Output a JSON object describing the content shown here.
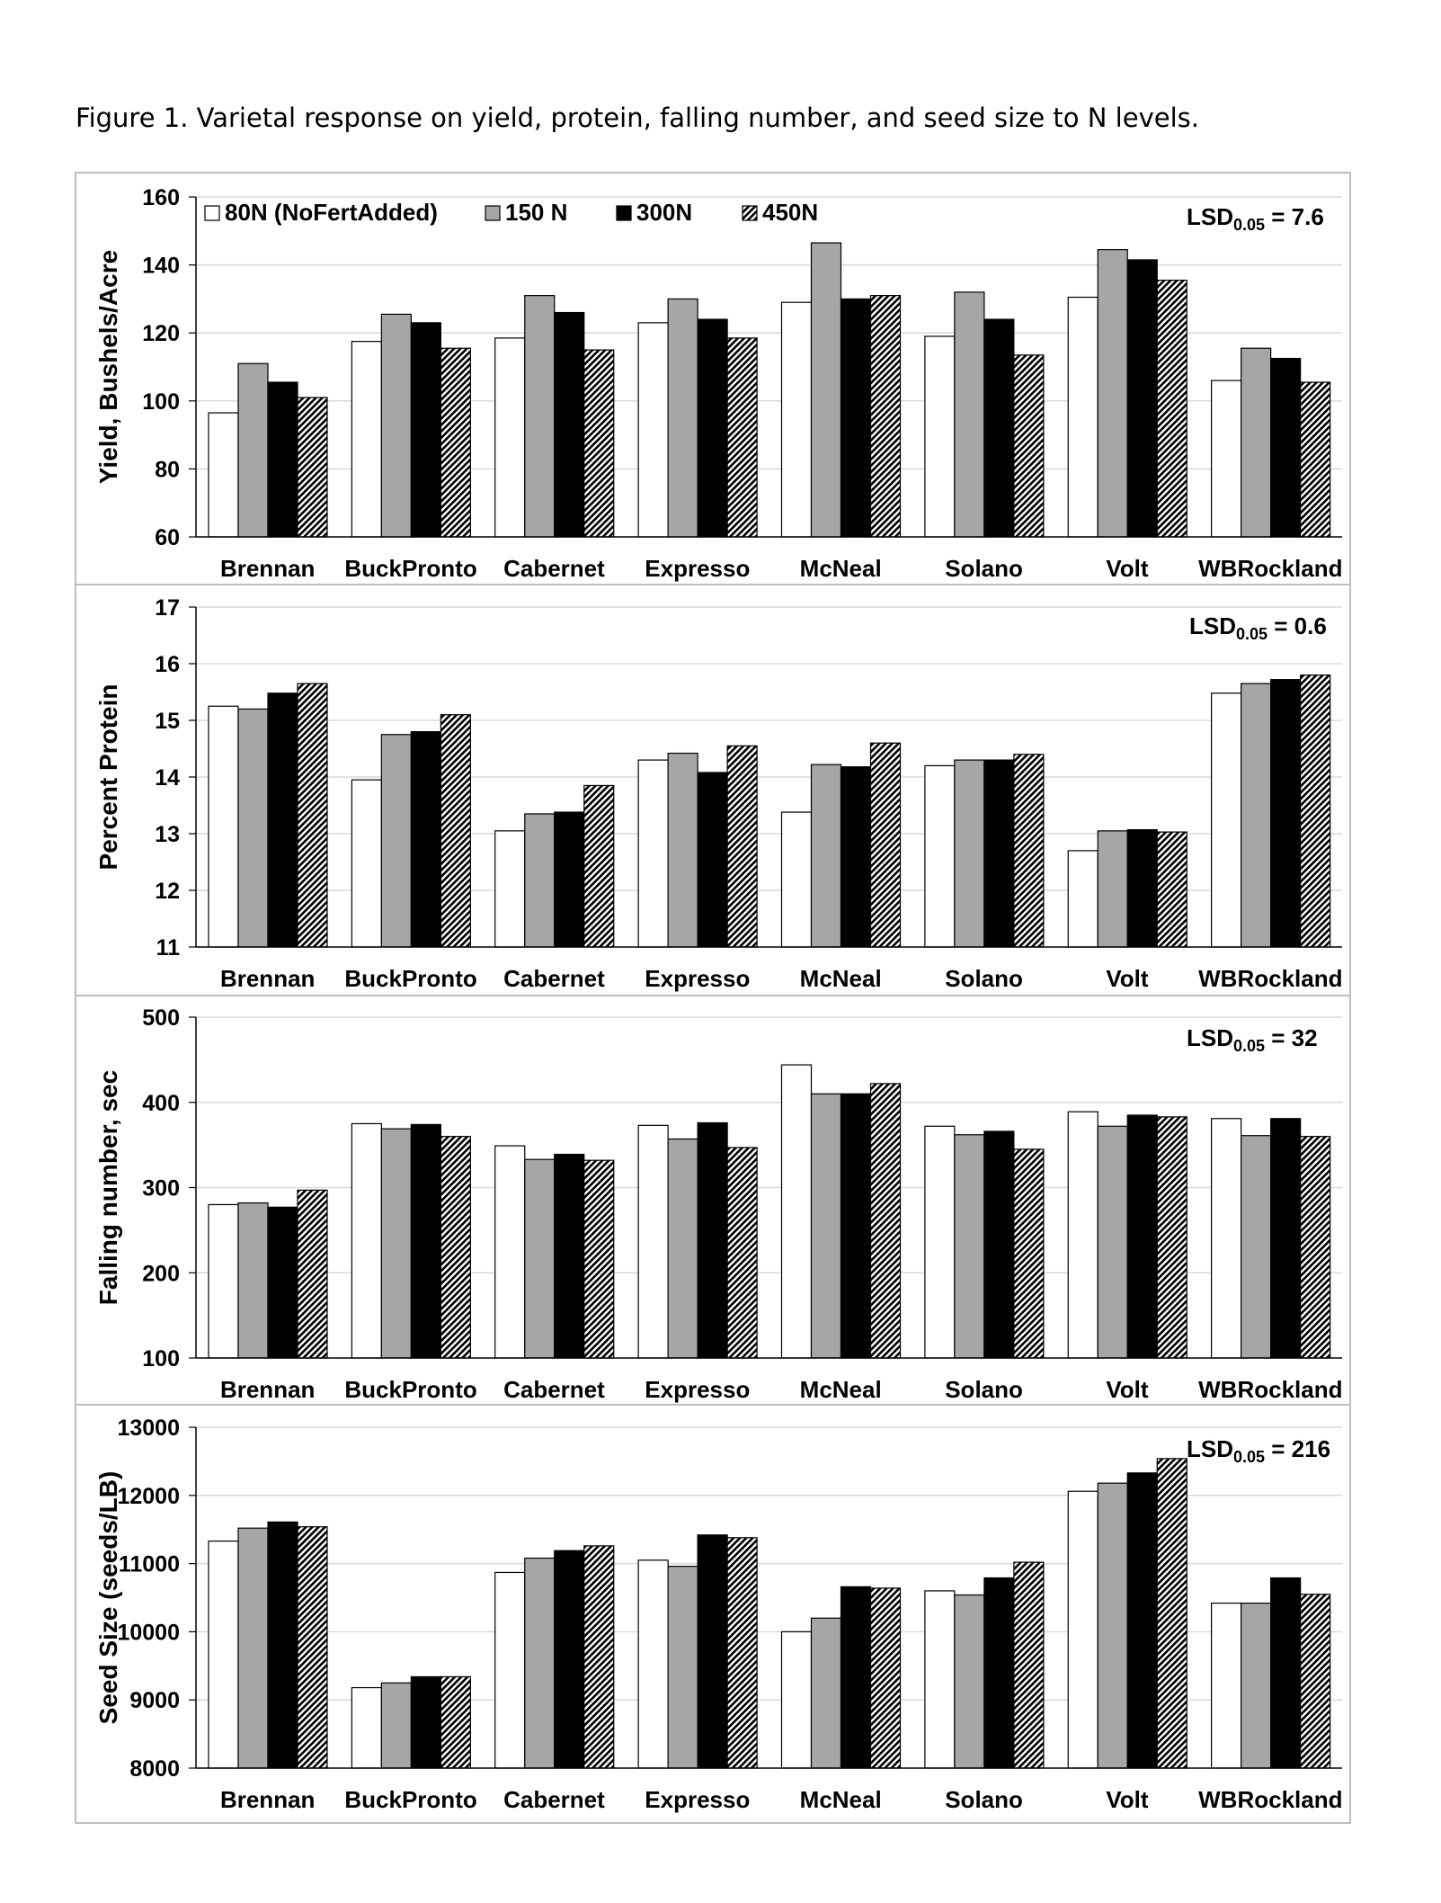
{
  "caption": "Figure 1. Varietal response on yield, protein, falling number, and seed size to N levels.",
  "categories": [
    "Brennan",
    "BuckPronto",
    "Cabernet",
    "Expresso",
    "McNeal",
    "Solano",
    "Volt",
    "WBRockland"
  ],
  "legend": [
    {
      "label": "80N (NoFertAdded)",
      "fill": "white"
    },
    {
      "label": "150 N",
      "fill": "gray"
    },
    {
      "label": "300N",
      "fill": "black"
    },
    {
      "label": "450N",
      "fill": "hatch"
    }
  ],
  "colors": {
    "white": "#ffffff",
    "gray": "#a6a6a6",
    "black": "#000000",
    "grid": "#d9d9d9",
    "frame": "#bfbfbf"
  },
  "chart_data": [
    {
      "type": "bar",
      "ylabel": "Yield, Bushels/Acre",
      "ylim": [
        60,
        160
      ],
      "yticks": [
        60,
        80,
        100,
        120,
        140,
        160
      ],
      "lsd_value": "7.6",
      "series": [
        {
          "name": "80N (NoFertAdded)",
          "values": [
            96.5,
            117.5,
            118.5,
            123,
            129,
            119,
            130.5,
            106
          ]
        },
        {
          "name": "150 N",
          "values": [
            111,
            125.5,
            131,
            130,
            146.5,
            132,
            144.5,
            115.5
          ]
        },
        {
          "name": "300N",
          "values": [
            105.5,
            123,
            126,
            124,
            130,
            124,
            141.5,
            112.5
          ]
        },
        {
          "name": "450N",
          "values": [
            101,
            115.5,
            115,
            118.5,
            131,
            113.5,
            135.5,
            105.5
          ]
        }
      ]
    },
    {
      "type": "bar",
      "ylabel": "Percent Protein",
      "ylim": [
        11,
        17
      ],
      "yticks": [
        11,
        12,
        13,
        14,
        15,
        16,
        17
      ],
      "lsd_value": "0.6",
      "series": [
        {
          "name": "80N (NoFertAdded)",
          "values": [
            15.25,
            13.95,
            13.05,
            14.3,
            13.38,
            14.2,
            12.7,
            15.48
          ]
        },
        {
          "name": "150 N",
          "values": [
            15.2,
            14.75,
            13.35,
            14.42,
            14.22,
            14.3,
            13.05,
            15.65
          ]
        },
        {
          "name": "300N",
          "values": [
            15.48,
            14.8,
            13.38,
            14.08,
            14.18,
            14.3,
            13.07,
            15.72
          ]
        },
        {
          "name": "450N",
          "values": [
            15.65,
            15.1,
            13.85,
            14.55,
            14.6,
            14.4,
            13.03,
            15.8
          ]
        }
      ]
    },
    {
      "type": "bar",
      "ylabel": "Falling number, sec",
      "ylim": [
        100,
        500
      ],
      "yticks": [
        100,
        200,
        300,
        400,
        500
      ],
      "lsd_value": "32",
      "series": [
        {
          "name": "80N (NoFertAdded)",
          "values": [
            280,
            375,
            349,
            373,
            444,
            372,
            389,
            381
          ]
        },
        {
          "name": "150 N",
          "values": [
            282,
            369,
            333,
            357,
            410,
            362,
            372,
            361
          ]
        },
        {
          "name": "300N",
          "values": [
            277,
            374,
            339,
            376,
            410,
            366,
            385,
            381
          ]
        },
        {
          "name": "450N",
          "values": [
            297,
            360,
            332,
            347,
            422,
            345,
            383,
            360
          ]
        }
      ]
    },
    {
      "type": "bar",
      "ylabel": "Seed Size (seeds/LB)",
      "ylim": [
        8000,
        13000
      ],
      "yticks": [
        8000,
        9000,
        10000,
        11000,
        12000,
        13000
      ],
      "lsd_value": "216",
      "series": [
        {
          "name": "80N (NoFertAdded)",
          "values": [
            11330,
            9180,
            10870,
            11050,
            10000,
            10600,
            12060,
            10420
          ]
        },
        {
          "name": "150 N",
          "values": [
            11520,
            9250,
            11080,
            10960,
            10200,
            10540,
            12180,
            10420
          ]
        },
        {
          "name": "300N",
          "values": [
            11610,
            9340,
            11190,
            11420,
            10660,
            10790,
            12330,
            10790
          ]
        },
        {
          "name": "450N",
          "values": [
            11540,
            9340,
            11260,
            11380,
            10640,
            11020,
            12540,
            10550
          ]
        }
      ]
    }
  ]
}
